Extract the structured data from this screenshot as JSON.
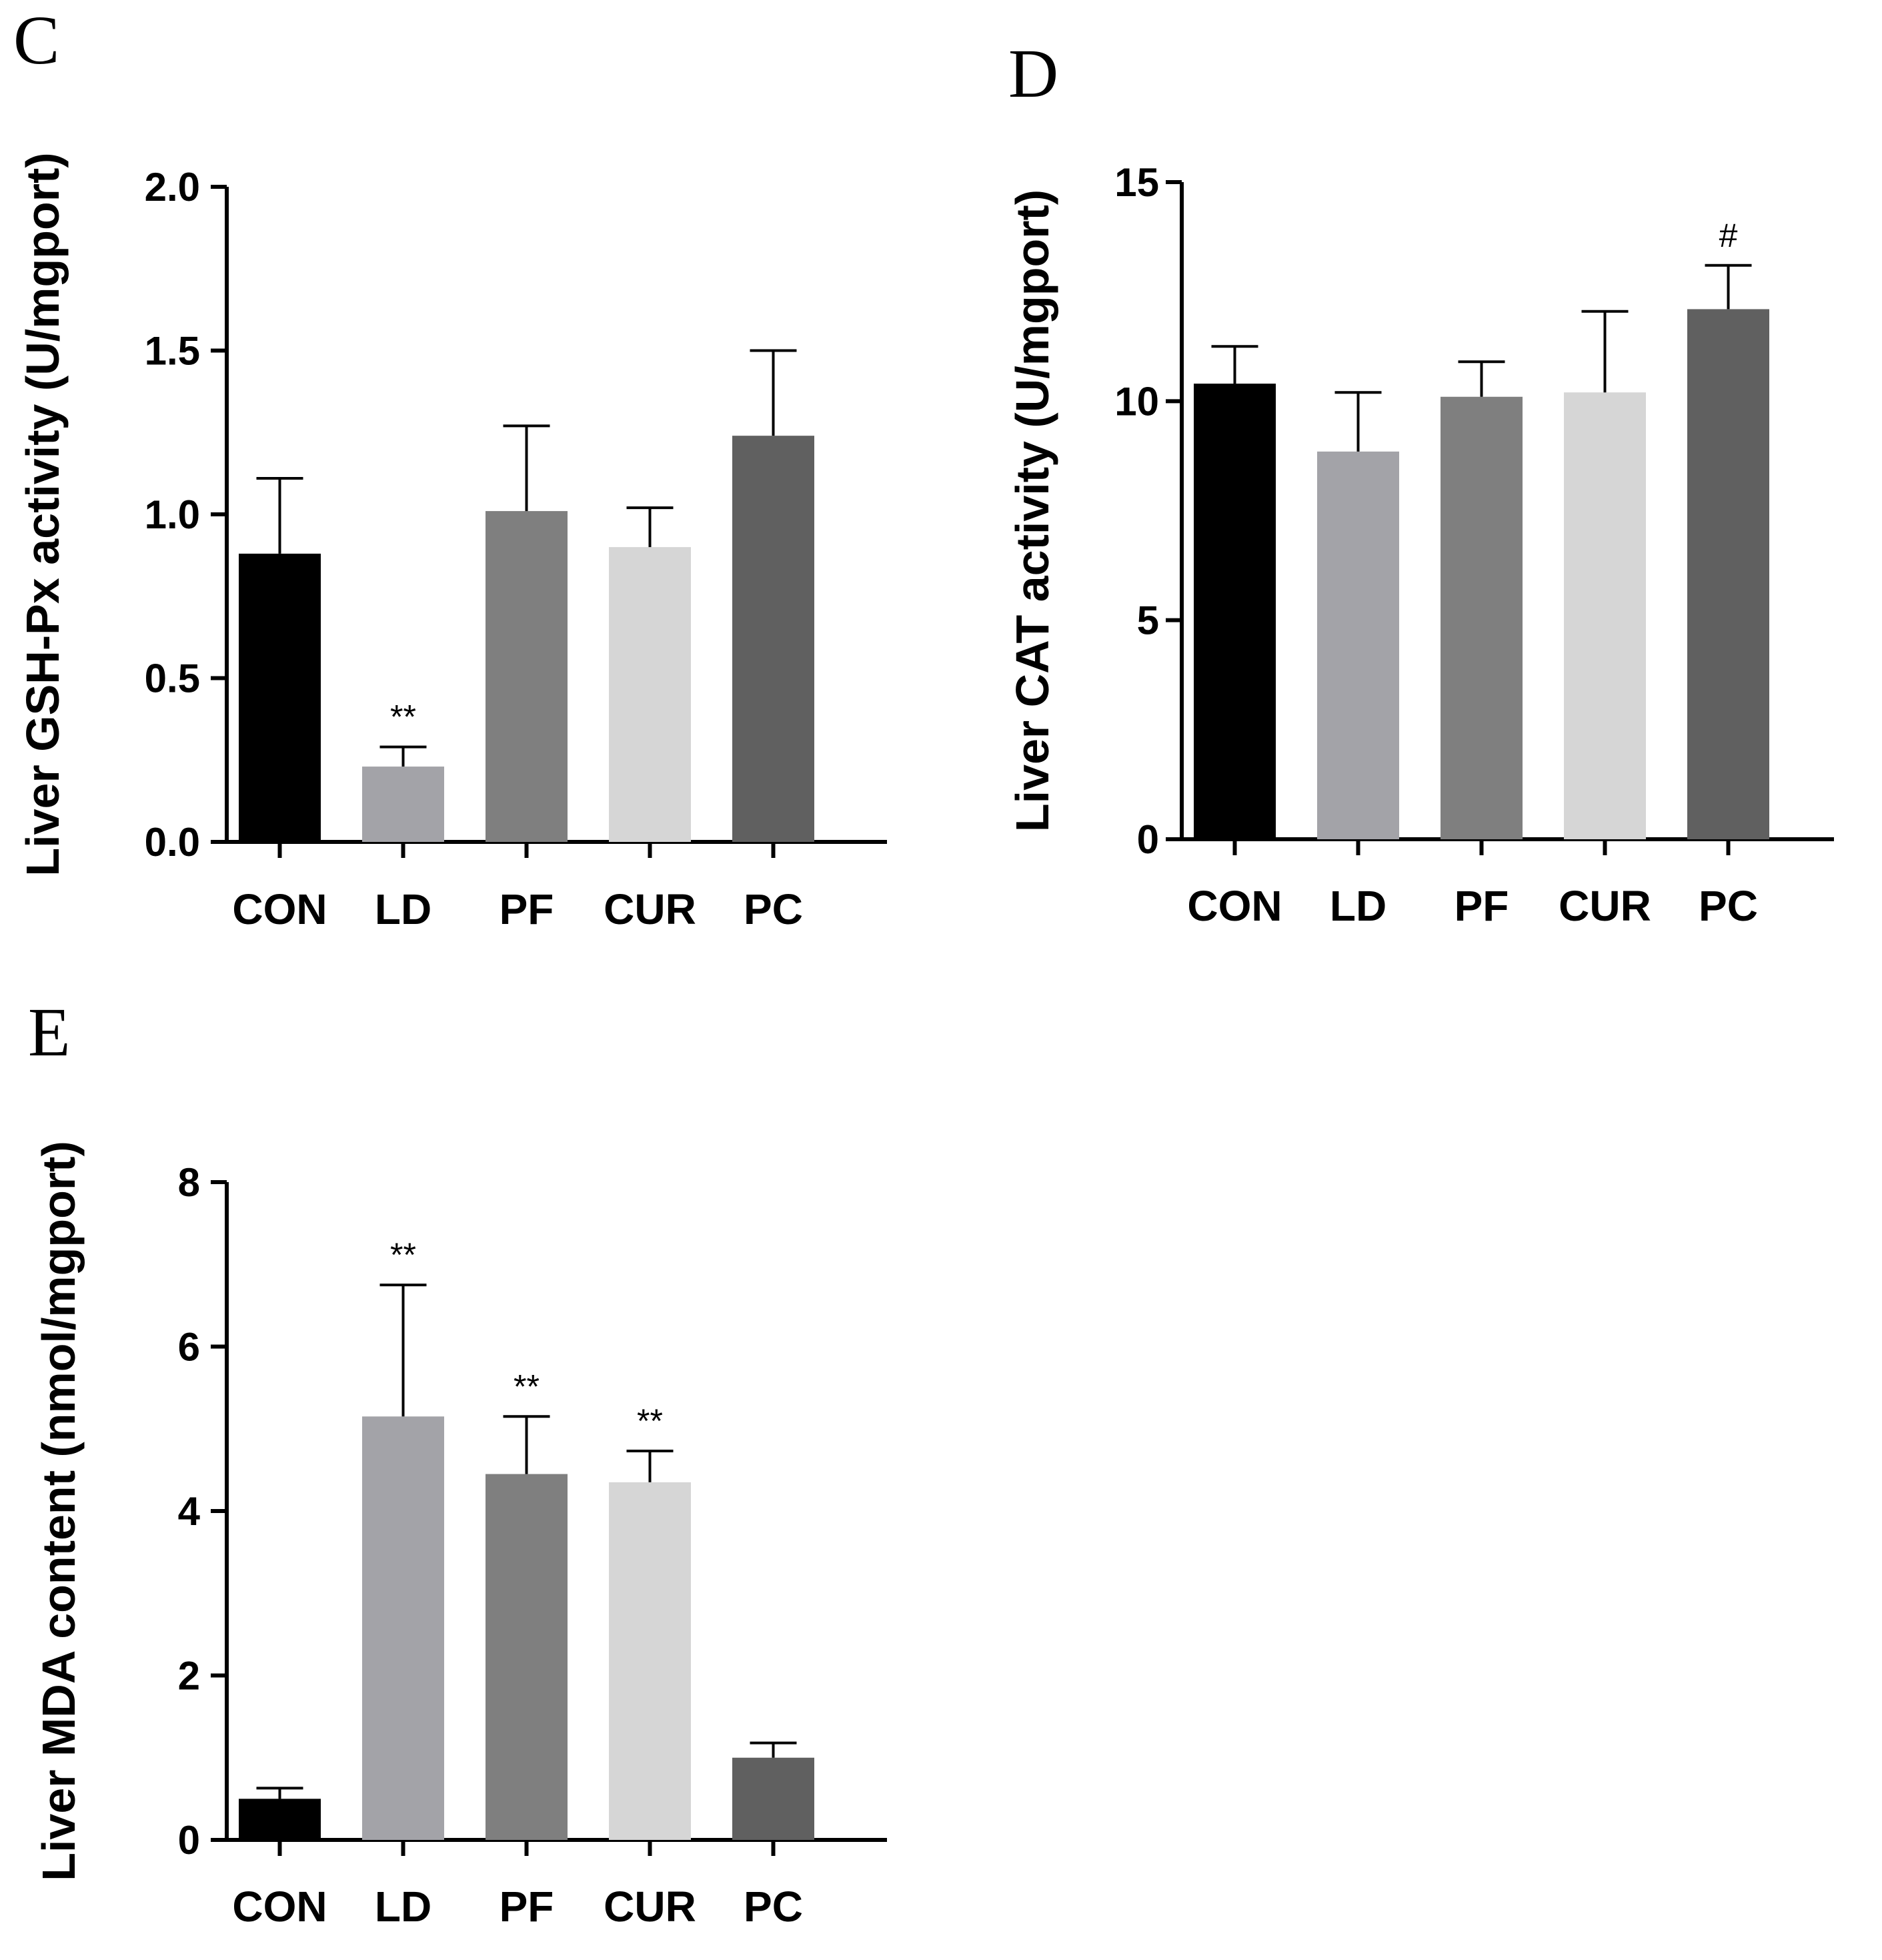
{
  "chart_data": [
    {
      "panel": "C",
      "type": "bar",
      "ylabel": "Liver GSH-Px activity (U/mgport)",
      "categories": [
        "CON",
        "LD",
        "PF",
        "CUR",
        "PC"
      ],
      "values": [
        0.88,
        0.23,
        1.01,
        0.9,
        1.24
      ],
      "errors": [
        0.23,
        0.06,
        0.26,
        0.12,
        0.26
      ],
      "annotations": [
        "",
        "**",
        "",
        "",
        ""
      ],
      "ylim": [
        0,
        2.0
      ],
      "yticks": [
        0.0,
        0.5,
        1.0,
        1.5,
        2.0
      ],
      "ytick_labels": [
        "0.0",
        "0.5",
        "1.0",
        "1.5",
        "2.0"
      ],
      "colors": [
        "#000000",
        "#a3a3a8",
        "#7f7f7f",
        "#d6d6d6",
        "#606060"
      ]
    },
    {
      "panel": "D",
      "type": "bar",
      "ylabel": "Liver CAT activity (U/mgport)",
      "categories": [
        "CON",
        "LD",
        "PF",
        "CUR",
        "PC"
      ],
      "values": [
        10.4,
        8.85,
        10.1,
        10.2,
        12.1
      ],
      "errors": [
        0.85,
        1.35,
        0.8,
        1.85,
        1.0
      ],
      "annotations": [
        "",
        "",
        "",
        "",
        "#"
      ],
      "ylim": [
        0,
        15
      ],
      "yticks": [
        0,
        5,
        10,
        15
      ],
      "ytick_labels": [
        "0",
        "5",
        "10",
        "15"
      ],
      "colors": [
        "#000000",
        "#a3a3a8",
        "#7f7f7f",
        "#d6d6d6",
        "#606060"
      ]
    },
    {
      "panel": "E",
      "type": "bar",
      "ylabel": "Liver MDA content (nmol/mgport)",
      "categories": [
        "CON",
        "LD",
        "PF",
        "CUR",
        "PC"
      ],
      "values": [
        0.5,
        5.15,
        4.45,
        4.35,
        1.0
      ],
      "errors": [
        0.13,
        1.6,
        0.7,
        0.38,
        0.18
      ],
      "annotations": [
        "",
        "**",
        "**",
        "**",
        ""
      ],
      "ylim": [
        0,
        8
      ],
      "yticks": [
        0,
        2,
        4,
        6,
        8
      ],
      "ytick_labels": [
        "0",
        "2",
        "4",
        "6",
        "8"
      ],
      "colors": [
        "#000000",
        "#a3a3a8",
        "#7f7f7f",
        "#d6d6d6",
        "#606060"
      ]
    }
  ]
}
